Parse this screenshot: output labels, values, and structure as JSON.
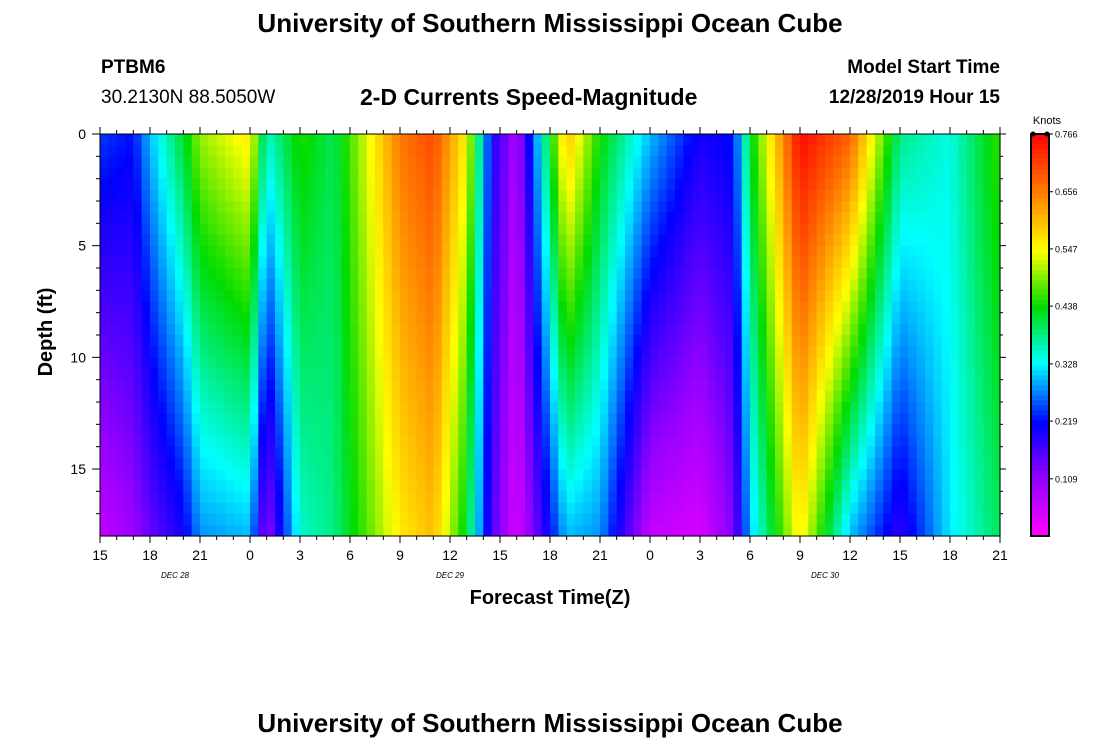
{
  "header": {
    "title": "University of Southern Mississippi Ocean Cube",
    "station_id": "PTBM6",
    "coordinates": "30.2130N 88.5050W",
    "product_title": "2-D Currents Speed-Magnitude",
    "model_start_label": "Model Start Time",
    "model_start_value": "12/28/2019 Hour 15"
  },
  "footer": {
    "title": "University of Southern Mississippi Ocean Cube"
  },
  "chart_data": {
    "type": "heatmap",
    "title": "2-D Currents Speed-Magnitude",
    "xlabel": "Forecast Time(Z)",
    "ylabel": "Depth (ft)",
    "x_tick_labels": [
      "15",
      "18",
      "21",
      "0",
      "3",
      "6",
      "9",
      "12",
      "15",
      "18",
      "21",
      "0",
      "3",
      "6",
      "9",
      "12",
      "15",
      "18",
      "21"
    ],
    "x_range_hours": [
      0,
      54
    ],
    "date_labels": [
      {
        "text": "DEC 28",
        "hour": 4.5
      },
      {
        "text": "DEC 29",
        "hour": 21
      },
      {
        "text": "DEC 30",
        "hour": 43.5
      }
    ],
    "y_tick_labels": [
      "0",
      "5",
      "10",
      "15"
    ],
    "y_range_ft": [
      0,
      18
    ],
    "y_inverted": true,
    "colorbar": {
      "label": "Knots",
      "tick_labels": [
        "0.766",
        "0.656",
        "0.547",
        "0.438",
        "0.328",
        "0.219",
        "0.109"
      ],
      "min": 0.0,
      "max": 0.766
    },
    "grid": false,
    "speed_profiles_knots": [
      {
        "hour": 0,
        "surface": 0.24,
        "bottom": 0.06
      },
      {
        "hour": 2,
        "surface": 0.22,
        "bottom": 0.1
      },
      {
        "hour": 3,
        "surface": 0.3,
        "bottom": 0.14
      },
      {
        "hour": 5,
        "surface": 0.42,
        "bottom": 0.2
      },
      {
        "hour": 6,
        "surface": 0.5,
        "bottom": 0.28
      },
      {
        "hour": 9,
        "surface": 0.56,
        "bottom": 0.3
      },
      {
        "hour": 10,
        "surface": 0.35,
        "bottom": 0.1
      },
      {
        "hour": 12,
        "surface": 0.45,
        "bottom": 0.35
      },
      {
        "hour": 14,
        "surface": 0.4,
        "bottom": 0.38
      },
      {
        "hour": 18,
        "surface": 0.66,
        "bottom": 0.56
      },
      {
        "hour": 20,
        "surface": 0.7,
        "bottom": 0.6
      },
      {
        "hour": 22,
        "surface": 0.55,
        "bottom": 0.42
      },
      {
        "hour": 23.5,
        "surface": 0.2,
        "bottom": 0.16
      },
      {
        "hour": 25,
        "surface": 0.08,
        "bottom": 0.04
      },
      {
        "hour": 28,
        "surface": 0.6,
        "bottom": 0.3
      },
      {
        "hour": 30,
        "surface": 0.44,
        "bottom": 0.28
      },
      {
        "hour": 33,
        "surface": 0.3,
        "bottom": 0.06
      },
      {
        "hour": 36,
        "surface": 0.2,
        "bottom": 0.04
      },
      {
        "hour": 38,
        "surface": 0.22,
        "bottom": 0.12
      },
      {
        "hour": 39,
        "surface": 0.42,
        "bottom": 0.3
      },
      {
        "hour": 42,
        "surface": 0.76,
        "bottom": 0.56
      },
      {
        "hour": 45,
        "surface": 0.68,
        "bottom": 0.3
      },
      {
        "hour": 48,
        "surface": 0.38,
        "bottom": 0.18
      },
      {
        "hour": 51,
        "surface": 0.34,
        "bottom": 0.32
      },
      {
        "hour": 54,
        "surface": 0.46,
        "bottom": 0.4
      }
    ]
  }
}
